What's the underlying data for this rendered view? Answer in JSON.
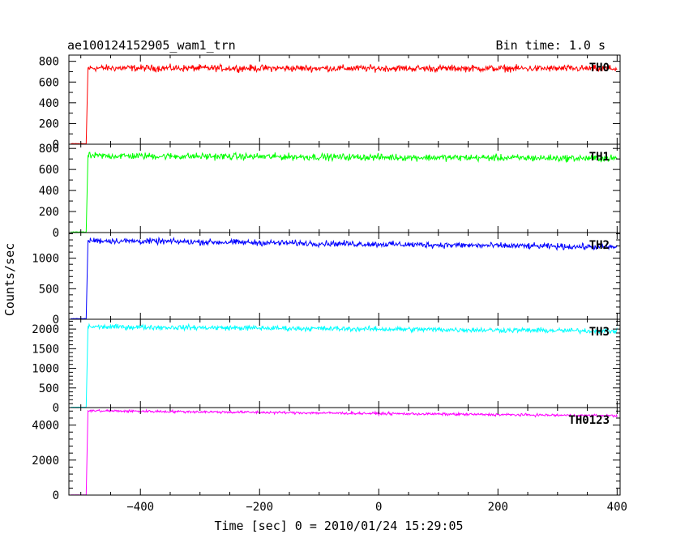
{
  "header": {
    "title": "ae100124152905_wam1_trn",
    "bin_time": "Bin time: 1.0 s"
  },
  "axes": {
    "xlabel": "Time [sec] 0 = 2010/01/24 15:29:05",
    "ylabel": "Counts/sec"
  },
  "chart_data": {
    "type": "line",
    "title": "ae100124152905_wam1_trn",
    "subtitle": "Bin time: 1.0 s",
    "xlabel": "Time [sec] 0 = 2010/01/24 15:29:05",
    "ylabel": "Counts/sec",
    "xlim": [
      -520,
      405
    ],
    "x_ticks": [
      -400,
      -200,
      0,
      200,
      400
    ],
    "x_tick_labels": [
      "−400",
      "−200",
      "0",
      "200",
      "400"
    ],
    "bin_time_s": 1.0,
    "grid": false,
    "onset_time": -490,
    "panels": [
      {
        "name": "TH0",
        "color": "#ff0000",
        "ylim": [
          0,
          860
        ],
        "yticks": [
          0,
          200,
          400,
          600,
          800
        ],
        "pre_level": 5,
        "start_level": 735,
        "end_level": 730,
        "noise": 30
      },
      {
        "name": "TH1",
        "color": "#00ff00",
        "ylim": [
          0,
          840
        ],
        "yticks": [
          0,
          200,
          400,
          600,
          800
        ],
        "pre_level": 5,
        "start_level": 730,
        "end_level": 705,
        "noise": 30
      },
      {
        "name": "TH2",
        "color": "#0000ff",
        "ylim": [
          0,
          1420
        ],
        "yticks": [
          0,
          500,
          1000
        ],
        "pre_level": 10,
        "start_level": 1290,
        "end_level": 1180,
        "noise": 45
      },
      {
        "name": "TH3",
        "color": "#00ffff",
        "ylim": [
          0,
          2250
        ],
        "yticks": [
          0,
          500,
          1000,
          1500,
          2000
        ],
        "pre_level": 10,
        "start_level": 2060,
        "end_level": 1950,
        "noise": 60
      },
      {
        "name": "TH0123",
        "color": "#ff00ff",
        "ylim": [
          0,
          5000
        ],
        "yticks": [
          0,
          2000,
          4000
        ],
        "pre_level": 10,
        "start_level": 4820,
        "end_level": 4530,
        "noise": 70
      }
    ]
  }
}
